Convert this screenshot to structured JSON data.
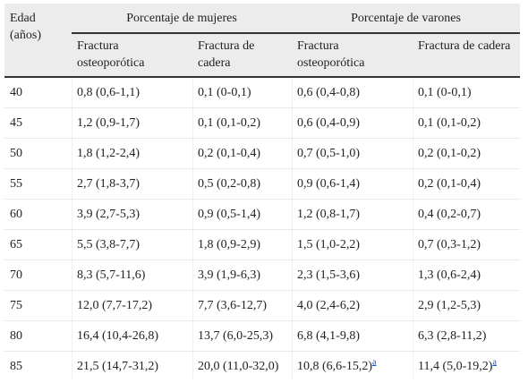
{
  "header": {
    "age_label": "Edad (años)",
    "group_women": "Porcentaje de mujeres",
    "group_men": "Porcentaje de varones",
    "sub_osteo": "Fractura osteoporótica",
    "sub_hip": "Fractura de cadera"
  },
  "rows": [
    {
      "age": "40",
      "w_osteo": "0,8 (0,6-1,1)",
      "w_hip": "0,1 (0-0,1)",
      "m_osteo": "0,6 (0,4-0,8)",
      "m_hip": "0,1 (0-0,1)"
    },
    {
      "age": "45",
      "w_osteo": "1,2 (0,9-1,7)",
      "w_hip": "0,1 (0,1-0,2)",
      "m_osteo": "0,6 (0,4-0,9)",
      "m_hip": "0,1 (0,1-0,2)"
    },
    {
      "age": "50",
      "w_osteo": "1,8 (1,2-2,4)",
      "w_hip": "0,2 (0,1-0,4)",
      "m_osteo": "0,7 (0,5-1,0)",
      "m_hip": "0,2 (0,1-0,2)"
    },
    {
      "age": "55",
      "w_osteo": "2,7 (1,8-3,7)",
      "w_hip": "0,5 (0,2-0,8)",
      "m_osteo": "0,9 (0,6-1,4)",
      "m_hip": "0,2 (0,1-0,4)"
    },
    {
      "age": "60",
      "w_osteo": "3,9 (2,7-5,3)",
      "w_hip": "0,9 (0,5-1,4)",
      "m_osteo": "1,2 (0,8-1,7)",
      "m_hip": "0,4 (0,2-0,7)"
    },
    {
      "age": "65",
      "w_osteo": "5,5 (3,8-7,7)",
      "w_hip": "1,8 (0,9-2,9)",
      "m_osteo": "1,5 (1,0-2,2)",
      "m_hip": "0,7 (0,3-1,2)"
    },
    {
      "age": "70",
      "w_osteo": "8,3 (5,7-11,6)",
      "w_hip": "3,9 (1,9-6,3)",
      "m_osteo": "2,3 (1,5-3,6)",
      "m_hip": "1,3 (0,6-2,4)"
    },
    {
      "age": "75",
      "w_osteo": "12,0 (7,7-17,2)",
      "w_hip": "7,7 (3,6-12,7)",
      "m_osteo": "4,0 (2,4-6,2)",
      "m_hip": "2,9 (1,2-5,3)"
    },
    {
      "age": "80",
      "w_osteo": "16,4 (10,4-26,8)",
      "w_hip": "13,7 (6,0-25,3)",
      "m_osteo": "6,8 (4,1-9,8)",
      "m_hip": "6,3 (2,8-11,2)"
    }
  ],
  "last_row": {
    "age": "85",
    "w_osteo": "21,5 (14,7-31,2)",
    "w_hip": "20,0 (11,0-32,0)",
    "m_osteo": "10,8 (6,6-15,2)",
    "m_osteo_note": "a",
    "m_hip": "11,4 (5,0-19,2)",
    "m_hip_note": "a"
  }
}
